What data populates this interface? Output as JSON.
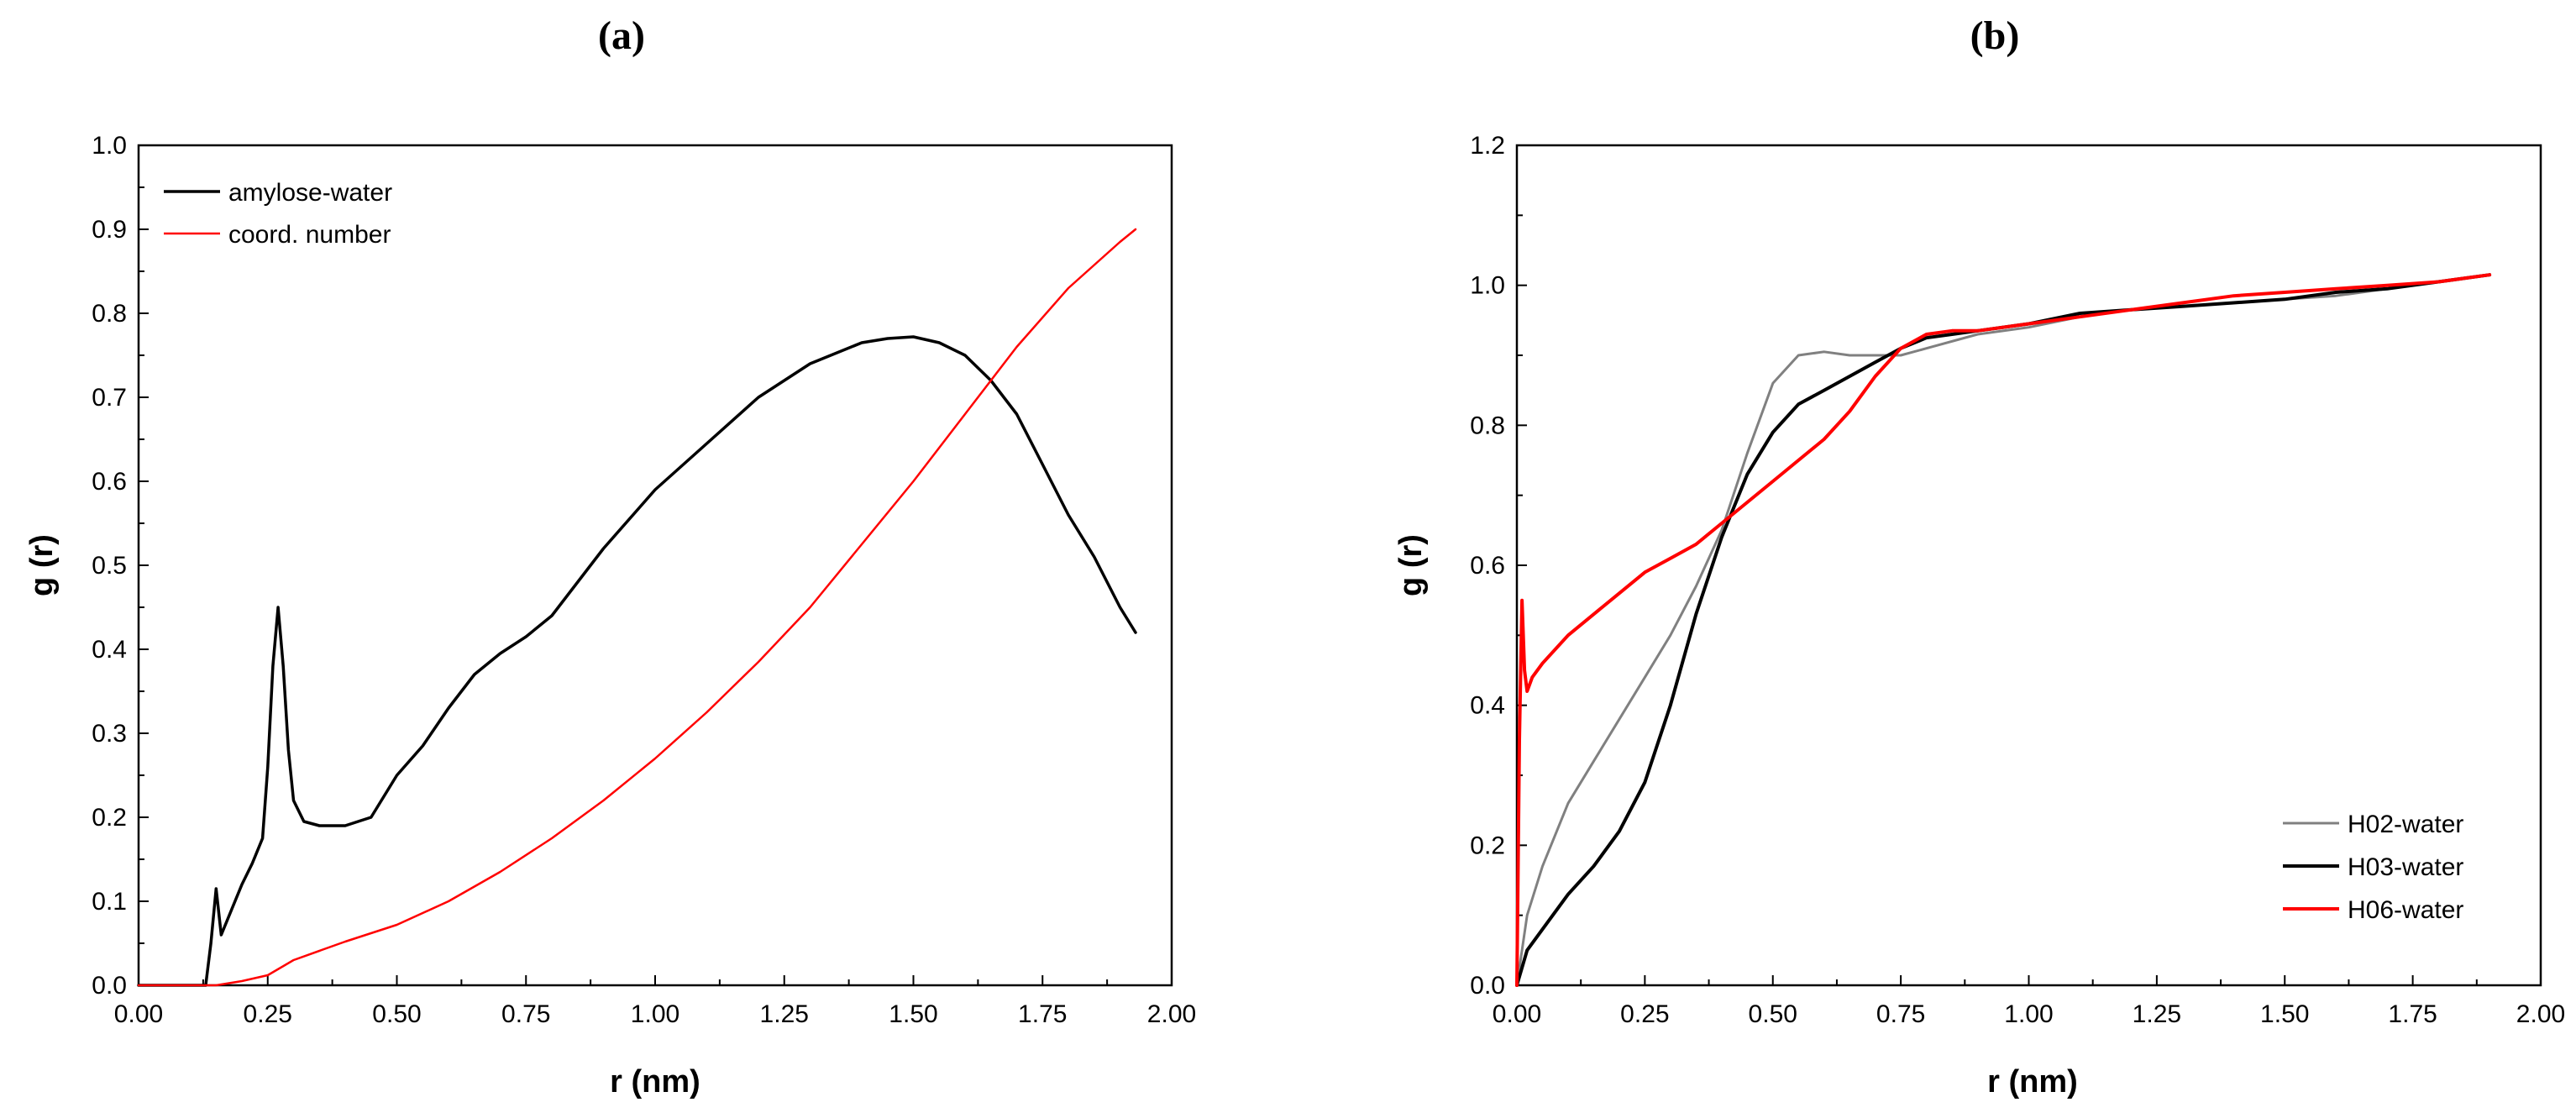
{
  "chart_data": [
    {
      "type": "line",
      "panel_label": "(a)",
      "xlabel": "r (nm)",
      "ylabel": "g (r)",
      "xlim": [
        0,
        2.0
      ],
      "ylim": [
        0,
        1.0
      ],
      "xticks": [
        "0.00",
        "0.25",
        "0.50",
        "0.75",
        "1.00",
        "1.25",
        "1.50",
        "1.75",
        "2.00"
      ],
      "yticks": [
        "0.0",
        "0.1",
        "0.2",
        "0.3",
        "0.4",
        "0.5",
        "0.6",
        "0.7",
        "0.8",
        "0.9",
        "1.0"
      ],
      "legend_position": "top-left",
      "grid": false,
      "series": [
        {
          "name": "amylose-water",
          "color": "#000000",
          "x": [
            0,
            0.13,
            0.14,
            0.15,
            0.16,
            0.18,
            0.2,
            0.22,
            0.24,
            0.25,
            0.26,
            0.27,
            0.28,
            0.29,
            0.3,
            0.32,
            0.35,
            0.4,
            0.45,
            0.5,
            0.55,
            0.6,
            0.65,
            0.7,
            0.75,
            0.8,
            0.9,
            1.0,
            1.1,
            1.2,
            1.3,
            1.4,
            1.45,
            1.5,
            1.55,
            1.6,
            1.65,
            1.7,
            1.75,
            1.8,
            1.85,
            1.9,
            1.93
          ],
          "y": [
            0,
            0,
            0.05,
            0.115,
            0.06,
            0.09,
            0.12,
            0.145,
            0.175,
            0.26,
            0.38,
            0.45,
            0.38,
            0.28,
            0.22,
            0.195,
            0.19,
            0.19,
            0.2,
            0.25,
            0.285,
            0.33,
            0.37,
            0.395,
            0.415,
            0.44,
            0.52,
            0.59,
            0.645,
            0.7,
            0.74,
            0.765,
            0.77,
            0.772,
            0.765,
            0.75,
            0.72,
            0.68,
            0.62,
            0.56,
            0.51,
            0.45,
            0.42
          ]
        },
        {
          "name": "coord. number",
          "color": "#ff0000",
          "x": [
            0,
            0.15,
            0.2,
            0.25,
            0.3,
            0.4,
            0.5,
            0.6,
            0.7,
            0.8,
            0.9,
            1.0,
            1.1,
            1.2,
            1.3,
            1.4,
            1.5,
            1.6,
            1.7,
            1.8,
            1.9,
            1.93
          ],
          "y": [
            0,
            0,
            0.005,
            0.012,
            0.03,
            0.052,
            0.072,
            0.1,
            0.135,
            0.175,
            0.22,
            0.27,
            0.325,
            0.385,
            0.45,
            0.525,
            0.6,
            0.68,
            0.76,
            0.83,
            0.885,
            0.9
          ]
        }
      ]
    },
    {
      "type": "line",
      "panel_label": "(b)",
      "xlabel": "r (nm)",
      "ylabel": "g (r)",
      "xlim": [
        0,
        2.0
      ],
      "ylim": [
        0,
        1.2
      ],
      "xticks": [
        "0.00",
        "0.25",
        "0.50",
        "0.75",
        "1.00",
        "1.25",
        "1.50",
        "1.75",
        "2.00"
      ],
      "yticks": [
        "0.0",
        "0.2",
        "0.4",
        "0.6",
        "0.8",
        "1.0",
        "1.2"
      ],
      "legend_position": "bottom-right",
      "grid": false,
      "series": [
        {
          "name": "H02-water",
          "color": "#808080",
          "x": [
            0,
            0.02,
            0.05,
            0.1,
            0.15,
            0.2,
            0.25,
            0.3,
            0.35,
            0.4,
            0.45,
            0.5,
            0.55,
            0.6,
            0.65,
            0.7,
            0.75,
            0.8,
            0.9,
            1.0,
            1.1,
            1.2,
            1.3,
            1.4,
            1.5,
            1.6,
            1.7,
            1.8,
            1.9
          ],
          "y": [
            0,
            0.1,
            0.17,
            0.26,
            0.32,
            0.38,
            0.44,
            0.5,
            0.57,
            0.65,
            0.76,
            0.86,
            0.9,
            0.905,
            0.9,
            0.9,
            0.9,
            0.91,
            0.93,
            0.94,
            0.955,
            0.965,
            0.97,
            0.975,
            0.98,
            0.985,
            0.995,
            1.005,
            1.015
          ]
        },
        {
          "name": "H03-water",
          "color": "#000000",
          "x": [
            0,
            0.02,
            0.05,
            0.1,
            0.15,
            0.2,
            0.25,
            0.3,
            0.35,
            0.4,
            0.45,
            0.5,
            0.55,
            0.6,
            0.65,
            0.7,
            0.75,
            0.8,
            0.85,
            0.9,
            1.0,
            1.1,
            1.2,
            1.3,
            1.4,
            1.5,
            1.6,
            1.7,
            1.8,
            1.9
          ],
          "y": [
            0,
            0.05,
            0.08,
            0.13,
            0.17,
            0.22,
            0.29,
            0.4,
            0.53,
            0.64,
            0.73,
            0.79,
            0.83,
            0.85,
            0.87,
            0.89,
            0.91,
            0.925,
            0.93,
            0.935,
            0.945,
            0.96,
            0.965,
            0.97,
            0.975,
            0.98,
            0.99,
            0.995,
            1.005,
            1.015
          ]
        },
        {
          "name": "H06-water",
          "color": "#ff0000",
          "x": [
            0,
            0.005,
            0.01,
            0.015,
            0.02,
            0.03,
            0.05,
            0.1,
            0.15,
            0.2,
            0.25,
            0.3,
            0.35,
            0.4,
            0.45,
            0.5,
            0.55,
            0.6,
            0.65,
            0.7,
            0.75,
            0.8,
            0.85,
            0.9,
            1.0,
            1.1,
            1.2,
            1.3,
            1.4,
            1.5,
            1.6,
            1.7,
            1.8,
            1.9
          ],
          "y": [
            0,
            0.35,
            0.55,
            0.45,
            0.42,
            0.44,
            0.46,
            0.5,
            0.53,
            0.56,
            0.59,
            0.61,
            0.63,
            0.66,
            0.69,
            0.72,
            0.75,
            0.78,
            0.82,
            0.87,
            0.91,
            0.93,
            0.935,
            0.935,
            0.945,
            0.955,
            0.965,
            0.975,
            0.985,
            0.99,
            0.995,
            1.0,
            1.005,
            1.015
          ]
        }
      ]
    }
  ]
}
